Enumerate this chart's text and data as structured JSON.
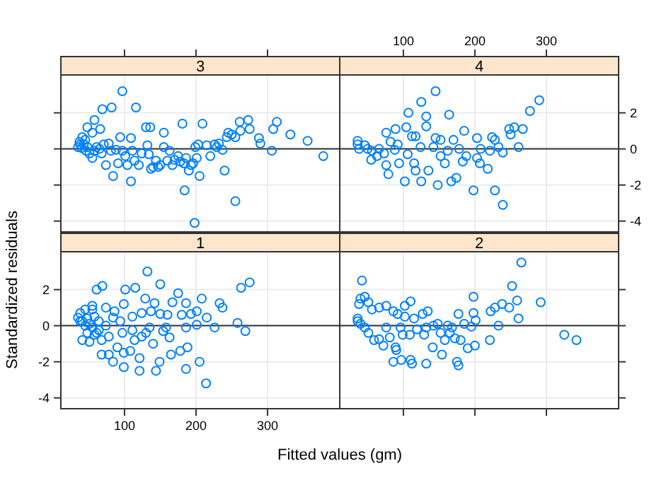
{
  "chart_data": [
    {
      "type": "scatter",
      "title": "3",
      "color": "#0080ff",
      "marker": "circle",
      "grid": true,
      "tick_labels": false,
      "xlim": [
        11,
        401
      ],
      "ylim": [
        -4.6,
        4.1
      ],
      "xticks": [
        100,
        200,
        300
      ],
      "yticks": [
        -4,
        -2,
        0,
        2
      ],
      "ref_lines": [
        {
          "axis": "y",
          "value": 0
        }
      ],
      "x": [
        97,
        69,
        82,
        116,
        58,
        48,
        66,
        55,
        41,
        45,
        38,
        40,
        46,
        51,
        55,
        61,
        71,
        78,
        74,
        84,
        91,
        94,
        109,
        111,
        109,
        104,
        120,
        130,
        136,
        132,
        134,
        137,
        147,
        155,
        155,
        163,
        167,
        175,
        181,
        184,
        183,
        193,
        198,
        199,
        201,
        205,
        209,
        215,
        220,
        226,
        232,
        237,
        240,
        243,
        250,
        255,
        261,
        262,
        273,
        275,
        288,
        290,
        306,
        308,
        313,
        332,
        356,
        378,
        35,
        37,
        43,
        48,
        58,
        65,
        68,
        81,
        88,
        97,
        101,
        114,
        124,
        140,
        144,
        150,
        160,
        170,
        178,
        186,
        190,
        196,
        203,
        229,
        245,
        255
      ],
      "values": [
        3.2,
        2.2,
        2.3,
        2.3,
        1.6,
        1.2,
        1.1,
        0.9,
        0.65,
        0.5,
        0.25,
        0.05,
        -0.1,
        -0.25,
        -0.5,
        0.1,
        0.25,
        0.3,
        -0.9,
        -1.5,
        -0.8,
        0.65,
        0.6,
        -0.1,
        -1.8,
        -0.9,
        -0.9,
        1.2,
        1.2,
        0.2,
        -0.3,
        -1.1,
        -1.0,
        0.9,
        0.1,
        -0.1,
        -0.9,
        -0.4,
        1.4,
        -2.3,
        -0.8,
        -0.9,
        -4.1,
        0.1,
        -0.5,
        -1.5,
        1.4,
        0.2,
        -0.4,
        0.25,
        0.3,
        -0.05,
        -1.2,
        0.65,
        0.8,
        -2.9,
        1.5,
        1.0,
        1.6,
        1.1,
        0.6,
        0.3,
        -0.1,
        1.1,
        1.5,
        0.8,
        0.45,
        -0.4,
        0.1,
        0.4,
        0.25,
        0.1,
        -0.1,
        0,
        -0.25,
        -0.1,
        -0.05,
        -0.1,
        -0.4,
        -0.65,
        -0.25,
        -1.0,
        -0.65,
        -0.9,
        -0.65,
        -0.6,
        -0.7,
        -0.5,
        -1.2,
        -0.8,
        0.25,
        0.1,
        0.9,
        0.65
      ]
    },
    {
      "type": "scatter",
      "title": "4",
      "color": "#0080ff",
      "marker": "circle",
      "grid": true,
      "xlim": [
        11,
        401
      ],
      "ylim": [
        -4.6,
        4.1
      ],
      "xticks": [
        100,
        200,
        300
      ],
      "yticks": [
        -4,
        -2,
        0,
        2
      ],
      "ref_lines": [
        {
          "axis": "y",
          "value": 0
        }
      ],
      "x": [
        145,
        125,
        107,
        132,
        164,
        290,
        277,
        76,
        89,
        104,
        112,
        117,
        132,
        145,
        152,
        170,
        185,
        203,
        224,
        228,
        248,
        255,
        267,
        250,
        261,
        36,
        36,
        46,
        50,
        56,
        55,
        63,
        73,
        76,
        79,
        82,
        92,
        94,
        102,
        106,
        115,
        117,
        125,
        124,
        135,
        142,
        148,
        152,
        158,
        162,
        167,
        174,
        178,
        183,
        188,
        198,
        203,
        207,
        208,
        218,
        221,
        228,
        233,
        239,
        239,
        38,
        66,
        88
      ],
      "values": [
        3.2,
        2.6,
        2.0,
        1.8,
        1.9,
        2.7,
        2.1,
        0.9,
        1.1,
        1.2,
        0.7,
        0.7,
        1.25,
        0.6,
        0.5,
        0.5,
        1.0,
        0.6,
        0.65,
        0.5,
        1.1,
        1.2,
        1.1,
        0.8,
        0.1,
        0.45,
        0.25,
        0.2,
        0,
        -0.1,
        -0.6,
        -0.4,
        -0.25,
        -0.9,
        -1.4,
        0.4,
        0.25,
        -0.8,
        -1.8,
        -0.3,
        -0.8,
        -1.2,
        -1.8,
        0.1,
        -1.2,
        0.1,
        -2.0,
        -0.4,
        -0.8,
        -0.1,
        -1.8,
        -1.6,
        0,
        -0.7,
        -0.4,
        -2.3,
        -0.5,
        -0.8,
        0,
        -1.1,
        -0.1,
        -2.3,
        0.1,
        -0.2,
        -3.1,
        0,
        0,
        -0.05
      ]
    },
    {
      "type": "scatter",
      "title": "1",
      "xlabel": "Fitted values (gm)",
      "ylabel": "Standardized residuals",
      "color": "#0080ff",
      "marker": "circle",
      "grid": true,
      "xlim": [
        11,
        401
      ],
      "ylim": [
        -4.6,
        4.1
      ],
      "xticks": [
        100,
        200,
        300
      ],
      "yticks": [
        -4,
        -2,
        0,
        2
      ],
      "ref_lines": [
        {
          "axis": "y",
          "value": 0
        }
      ],
      "x": [
        132,
        69,
        61,
        101,
        115,
        150,
        175,
        275,
        263,
        208,
        233,
        237,
        129,
        142,
        167,
        186,
        99,
        86,
        74,
        55,
        45,
        38,
        35,
        41,
        48,
        51,
        58,
        64,
        74,
        84,
        94,
        111,
        124,
        137,
        150,
        160,
        180,
        193,
        201,
        215,
        201,
        186,
        158,
        258,
        269,
        226,
        41,
        51,
        58,
        68,
        78,
        84,
        90,
        99,
        99,
        108,
        114,
        121,
        121,
        124,
        130,
        140,
        144,
        149,
        163,
        165,
        178,
        186,
        188,
        205,
        214,
        111,
        97,
        78,
        64,
        48,
        154,
        135,
        38,
        45,
        55,
        61,
        68,
        55
      ],
      "values": [
        3.0,
        2.2,
        2.0,
        2.0,
        2.1,
        2.3,
        1.8,
        2.4,
        2.1,
        1.5,
        1.25,
        1.0,
        1.5,
        1.25,
        1.3,
        1.25,
        1.2,
        0.8,
        1.0,
        1.1,
        0.9,
        0.7,
        0.45,
        0.25,
        0.4,
        0.1,
        0.5,
        0.25,
        0,
        0.45,
        0.25,
        0.5,
        0.7,
        0.8,
        0.65,
        0.6,
        0.6,
        0.65,
        0.8,
        0.45,
        0.05,
        -0.1,
        -0.1,
        0.15,
        -0.3,
        -0.1,
        -0.8,
        -0.9,
        -0.5,
        -1.6,
        -1.6,
        -2.0,
        -1.2,
        -1.5,
        -2.3,
        -1.4,
        -0.8,
        -1.8,
        -2.5,
        -0.6,
        -0.4,
        -1.0,
        -2.5,
        -2.0,
        -0.65,
        -1.6,
        -1.4,
        -2.4,
        -1.2,
        -2.0,
        -3.2,
        -0.25,
        -0.4,
        -0.6,
        -0.25,
        -0.4,
        -0.3,
        -0.1,
        0.25,
        0,
        -0.1,
        -0.4,
        -0.8,
        0.9
      ]
    },
    {
      "type": "scatter",
      "title": "2",
      "color": "#0080ff",
      "marker": "circle",
      "grid": true,
      "tick_labels": false,
      "xlim": [
        11,
        401
      ],
      "ylim": [
        -4.6,
        4.1
      ],
      "xticks": [
        100,
        200,
        300
      ],
      "yticks": [
        -4,
        -2,
        0,
        2
      ],
      "ref_lines": [
        {
          "axis": "y",
          "value": 0
        }
      ],
      "x": [
        265,
        42,
        252,
        198,
        292,
        259,
        238,
        248,
        228,
        222,
        261,
        233,
        38,
        40,
        46,
        51,
        56,
        66,
        76,
        86,
        92,
        102,
        110,
        102,
        115,
        127,
        134,
        177,
        198,
        201,
        185,
        195,
        36,
        36,
        40,
        46,
        51,
        59,
        66,
        72,
        81,
        89,
        90,
        86,
        97,
        99,
        109,
        110,
        112,
        119,
        129,
        132,
        141,
        142,
        148,
        152,
        154,
        158,
        165,
        172,
        175,
        177,
        180,
        190,
        200,
        221,
        325,
        342,
        76,
        96,
        132,
        162,
        168
      ],
      "values": [
        3.5,
        2.5,
        2.2,
        1.6,
        1.3,
        1.4,
        1.2,
        1.0,
        1.0,
        0.8,
        0.4,
        0,
        1.2,
        1.5,
        1.6,
        1.3,
        0.9,
        1.0,
        1.1,
        0.8,
        0.65,
        1.1,
        1.35,
        0.5,
        0.4,
        0.65,
        0.8,
        0.65,
        0.7,
        0.3,
        0.1,
        -0.05,
        0.4,
        0.25,
        0.1,
        -0.1,
        -0.4,
        -0.8,
        -0.75,
        -1.1,
        -0.65,
        -1.2,
        -1.35,
        -2.0,
        -1.9,
        -0.5,
        -0.5,
        -1.9,
        -2.1,
        -0.2,
        -0.5,
        -2.1,
        -1.2,
        0,
        0.1,
        -0.4,
        -1.6,
        -0.8,
        -0.4,
        -0.7,
        -2.0,
        -2.2,
        -0.8,
        -1.25,
        -1.1,
        -0.8,
        -0.5,
        -0.8,
        -0.1,
        -0.1,
        -0.1,
        0,
        -0.1
      ]
    }
  ]
}
